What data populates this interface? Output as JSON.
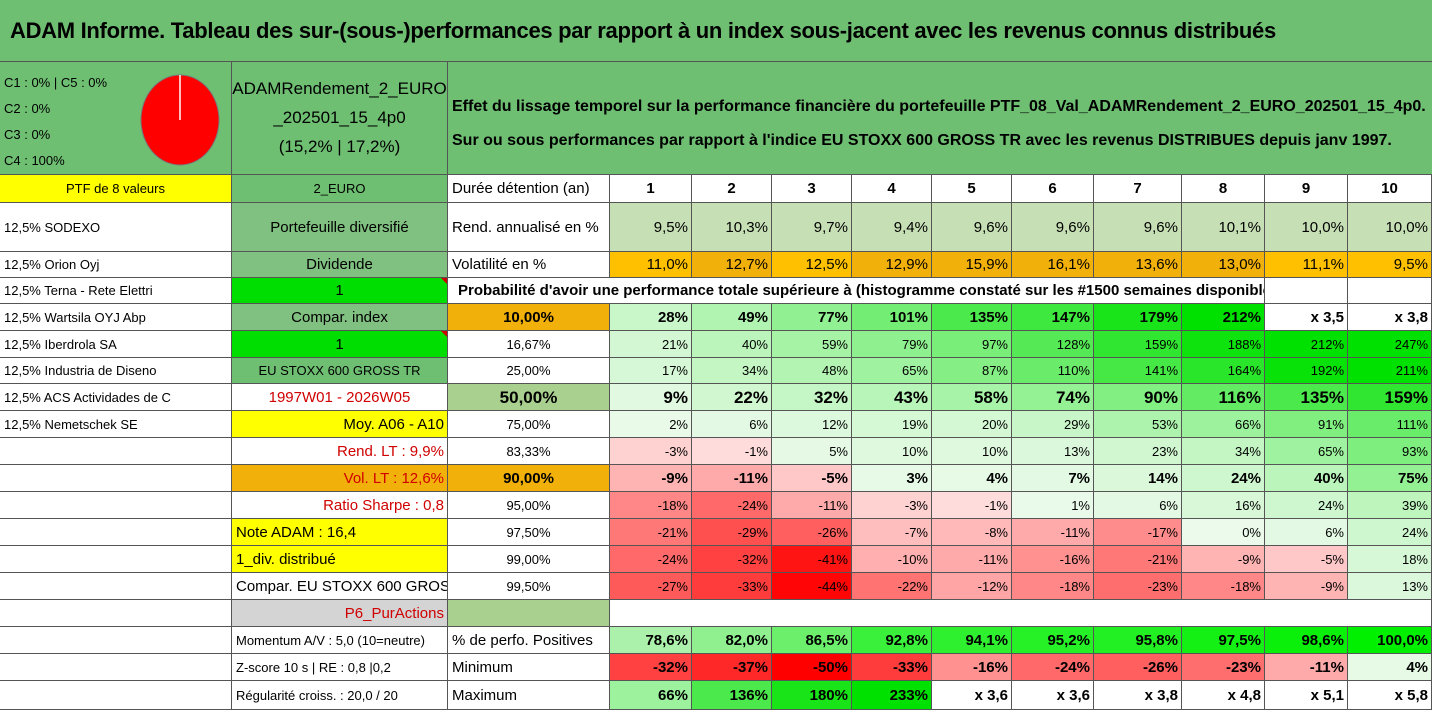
{
  "title": "ADAM Informe. Tableau des sur-(sous-)performances par rapport à un index sous-jacent avec les revenus connus distribués",
  "legend": {
    "l1": "C1 : 0% | C5 : 0%",
    "l2": "C2 : 0%",
    "l3": "C3 : 0%",
    "l4": "C4 : 100%"
  },
  "pie": {
    "color": "#ff0000",
    "c4_share_percent": 100
  },
  "portfolio_name": {
    "line1": "ADAMRendement_2_EURO",
    "line2": "_202501_15_4p0",
    "line3": "(15,2% | 17,2%)"
  },
  "description": {
    "line1": "Effet du lissage temporel sur la performance financière du portefeuille PTF_08_Val_ADAMRendement_2_EURO_202501_15_4p0.",
    "line2": "Sur ou sous performances par rapport à l'indice EU STOXX 600 GROSS TR avec les revenus DISTRIBUES depuis janv 1997."
  },
  "ptf_label": "PTF de 8 valeurs",
  "currency": "2_EURO",
  "holdings": [
    "12,5% SODEXO",
    "12,5% Orion Oyj",
    "12,5% Terna - Rete Elettri",
    "12,5% Wartsila OYJ Abp",
    "12,5% Iberdrola SA",
    "12,5% Industria de Diseno",
    "12,5% ACS Actividades de C",
    "12,5% Nemetschek SE"
  ],
  "info": {
    "type": "Portefeuille diversifié",
    "dividend": "Dividende",
    "dividend_val": "1",
    "compar_index": "Compar. index",
    "compar_index_val": "1",
    "index_name": "EU STOXX 600 GROSS TR",
    "period": "1997W01 - 2026W05",
    "moy": "Moy. A06 - A10",
    "rend_lt": "Rend. LT : 9,9%",
    "vol_lt": "Vol. LT : 12,6%",
    "sharpe": "Ratio Sharpe : 0,8",
    "note": "Note ADAM : 16,4",
    "div": "1_div. distribué",
    "compar_full": "Compar. EU STOXX 600 GROSS TR",
    "p6": "P6_PurActions",
    "momentum": "Momentum A/V : 5,0 (10=neutre)",
    "zscore": "Z-score 10 s | RE : 0,8 |0,2",
    "regularite": "Régularité croiss. : 20,0 / 20"
  },
  "header": {
    "label": "Durée détention (an)",
    "years": [
      "1",
      "2",
      "3",
      "4",
      "5",
      "6",
      "7",
      "8",
      "9",
      "10"
    ]
  },
  "rend": {
    "label": "Rend. annualisé en %",
    "values": [
      "9,5%",
      "10,3%",
      "9,7%",
      "9,4%",
      "9,6%",
      "9,6%",
      "9,6%",
      "10,1%",
      "10,0%",
      "10,0%"
    ]
  },
  "vol": {
    "label": "Volatilité en %",
    "values": [
      "11,0%",
      "12,7%",
      "12,5%",
      "12,9%",
      "15,9%",
      "16,1%",
      "13,6%",
      "13,0%",
      "11,1%",
      "9,5%"
    ]
  },
  "prob_title": "Probabilité d'avoir une performance totale supérieure à (histogramme constaté sur les #1500 semaines disponibles)",
  "prob_rows": [
    {
      "p": "10,00%",
      "v": [
        "28%",
        "49%",
        "77%",
        "101%",
        "135%",
        "147%",
        "179%",
        "212%",
        "x 3,5",
        "x 3,8"
      ]
    },
    {
      "p": "16,67%",
      "v": [
        "21%",
        "40%",
        "59%",
        "79%",
        "97%",
        "128%",
        "159%",
        "188%",
        "212%",
        "247%"
      ]
    },
    {
      "p": "25,00%",
      "v": [
        "17%",
        "34%",
        "48%",
        "65%",
        "87%",
        "110%",
        "141%",
        "164%",
        "192%",
        "211%"
      ]
    },
    {
      "p": "50,00%",
      "v": [
        "9%",
        "22%",
        "32%",
        "43%",
        "58%",
        "74%",
        "90%",
        "116%",
        "135%",
        "159%"
      ]
    },
    {
      "p": "75,00%",
      "v": [
        "2%",
        "6%",
        "12%",
        "19%",
        "20%",
        "29%",
        "53%",
        "66%",
        "91%",
        "111%"
      ]
    },
    {
      "p": "83,33%",
      "v": [
        "-3%",
        "-1%",
        "5%",
        "10%",
        "10%",
        "13%",
        "23%",
        "34%",
        "65%",
        "93%"
      ]
    },
    {
      "p": "90,00%",
      "v": [
        "-9%",
        "-11%",
        "-5%",
        "3%",
        "4%",
        "7%",
        "14%",
        "24%",
        "40%",
        "75%"
      ]
    },
    {
      "p": "95,00%",
      "v": [
        "-18%",
        "-24%",
        "-11%",
        "-3%",
        "-1%",
        "1%",
        "6%",
        "16%",
        "24%",
        "39%"
      ]
    },
    {
      "p": "97,50%",
      "v": [
        "-21%",
        "-29%",
        "-26%",
        "-7%",
        "-8%",
        "-11%",
        "-17%",
        "0%",
        "6%",
        "24%"
      ]
    },
    {
      "p": "99,00%",
      "v": [
        "-24%",
        "-32%",
        "-41%",
        "-10%",
        "-11%",
        "-16%",
        "-21%",
        "-9%",
        "-5%",
        "18%"
      ]
    },
    {
      "p": "99,50%",
      "v": [
        "-27%",
        "-33%",
        "-44%",
        "-22%",
        "-12%",
        "-18%",
        "-23%",
        "-18%",
        "-9%",
        "13%"
      ]
    }
  ],
  "pos": {
    "label": "% de perfo. Positives",
    "values": [
      "78,6%",
      "82,0%",
      "86,5%",
      "92,8%",
      "94,1%",
      "95,2%",
      "95,8%",
      "97,5%",
      "98,6%",
      "100,0%"
    ]
  },
  "min": {
    "label": "Minimum",
    "values": [
      "-32%",
      "-37%",
      "-50%",
      "-33%",
      "-16%",
      "-24%",
      "-26%",
      "-23%",
      "-11%",
      "4%"
    ]
  },
  "max": {
    "label": "Maximum",
    "values": [
      "66%",
      "136%",
      "180%",
      "233%",
      "x 3,6",
      "x 3,6",
      "x 3,8",
      "x 4,8",
      "x 5,1",
      "x 5,8"
    ]
  }
}
